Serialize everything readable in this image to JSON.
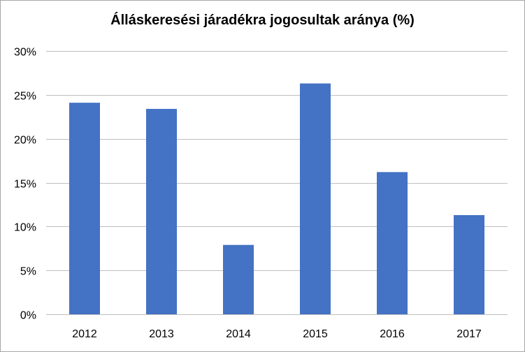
{
  "chart_data": {
    "type": "bar",
    "title": "Álláskeresési járadékra jogosultak aránya (%)",
    "categories": [
      "2012",
      "2013",
      "2014",
      "2015",
      "2016",
      "2017"
    ],
    "series": [
      {
        "values": [
          24.1,
          23.4,
          7.9,
          26.3,
          16.2,
          11.3
        ],
        "color": "#4472c4"
      }
    ],
    "ylim": [
      0,
      30
    ],
    "yticks": [
      0,
      5,
      10,
      15,
      20,
      25,
      30
    ],
    "ytick_labels": [
      "0%",
      "5%",
      "10%",
      "15%",
      "20%",
      "25%",
      "30%"
    ],
    "grid": true,
    "legend": "none",
    "gridline_color": "#bfbfbf"
  }
}
